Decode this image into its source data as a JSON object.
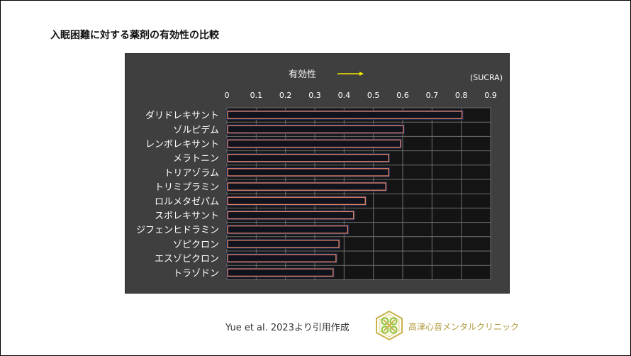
{
  "slide": {
    "title": "入眠困難に対する薬剤の有効性の比較",
    "citation": "Yue et al. 2023より引用作成",
    "clinic": "高津心音メンタルクリニック"
  },
  "colors": {
    "panel": "#3f3f3f",
    "plot_bg": "#141414",
    "grid": "#6e6e6e",
    "bar_fill": "#11131c",
    "bar_stroke": "#e8866a",
    "bar_glow": "#1f2d52",
    "arrow": "#f5e600",
    "text": "#ffffff",
    "logo_gold": "#c9b24a",
    "logo_green": "#8cc63f"
  },
  "chart_data": {
    "type": "bar",
    "orientation": "horizontal",
    "direction_label": "有効性",
    "unit_label": "(SUCRA)",
    "xlim": [
      0,
      0.9
    ],
    "ticks": [
      "0",
      "0.1",
      "0.2",
      "0.3",
      "0.4",
      "0.5",
      "0.6",
      "0.7",
      "0.8",
      "0.9"
    ],
    "tick_values": [
      0,
      0.1,
      0.2,
      0.3,
      0.4,
      0.5,
      0.6,
      0.7,
      0.8,
      0.9
    ],
    "grid": true,
    "categories": [
      "ダリドレキサント",
      "ゾルピデム",
      "レンボレキサント",
      "メラトニン",
      "トリアゾラム",
      "トリミプラミン",
      "ロルメタゼパム",
      "スボレキサント",
      "ジフェンヒドラミン",
      "ゾピクロン",
      "エスゾピクロン",
      "トラゾドン"
    ],
    "values": [
      0.8,
      0.6,
      0.59,
      0.55,
      0.55,
      0.54,
      0.47,
      0.43,
      0.41,
      0.38,
      0.37,
      0.36
    ]
  }
}
